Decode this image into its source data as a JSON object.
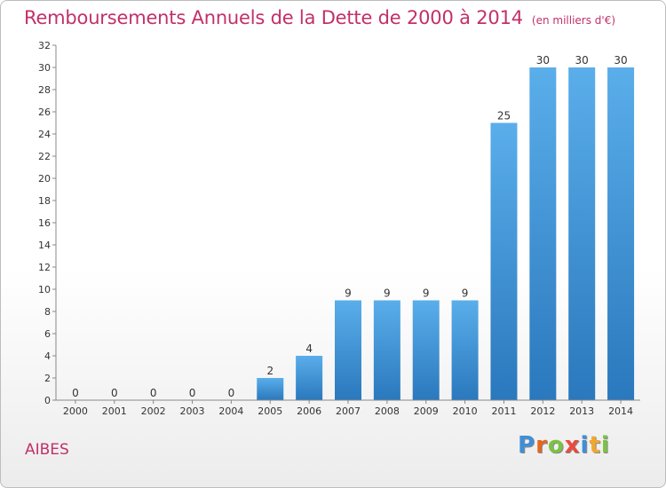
{
  "header": {
    "title": "Remboursements Annuels de la Dette de 2000 à 2014",
    "unit": "(en milliers d'€)"
  },
  "footer": {
    "commune": "AIBES",
    "logo": {
      "letters": [
        "P",
        "r",
        "o",
        "x",
        "i",
        "t",
        "i"
      ],
      "colors": [
        "#3f8fd8",
        "#e8661f",
        "#7cc242",
        "#e94b3c",
        "#3f8fd8",
        "#f0a830",
        "#7cc242"
      ]
    }
  },
  "chart_data": {
    "type": "bar",
    "title": "Remboursements Annuels de la Dette de 2000 à 2014",
    "subtitle": "(en milliers d'€)",
    "categories": [
      "2000",
      "2001",
      "2002",
      "2003",
      "2004",
      "2005",
      "2006",
      "2007",
      "2008",
      "2009",
      "2010",
      "2011",
      "2012",
      "2013",
      "2014"
    ],
    "values": [
      0,
      0,
      0,
      0,
      0,
      2,
      4,
      9,
      9,
      9,
      9,
      25,
      30,
      30,
      30
    ],
    "ylim": [
      0,
      32
    ],
    "yticks": [
      0,
      2,
      4,
      6,
      8,
      10,
      12,
      14,
      16,
      18,
      20,
      22,
      24,
      26,
      28,
      30,
      32
    ],
    "grid": false,
    "legend": "none",
    "colors": {
      "bar_top": "#5aaeea",
      "bar_bottom": "#2a78bd",
      "axis": "#888888"
    }
  }
}
